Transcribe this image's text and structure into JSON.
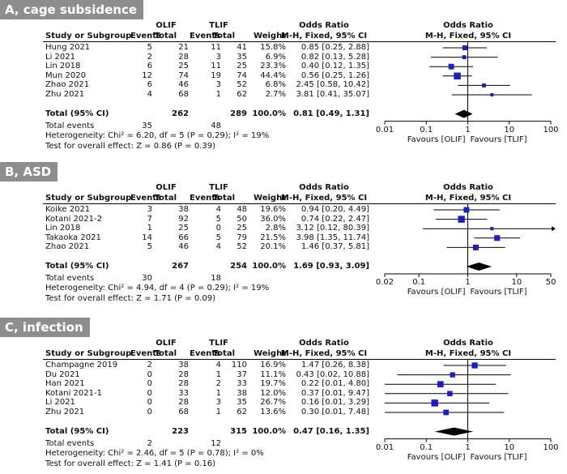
{
  "headers": {
    "olif": "OLIF",
    "tlif": "TLIF",
    "or_title": "Odds Ratio",
    "study": "Study or Subgroup",
    "events": "Events",
    "total": "Total",
    "weight": "Weight",
    "method": "M-H, Fixed, 95% CI"
  },
  "labels": {
    "total_ci": "Total (95% CI)",
    "total_events": "Total events",
    "favours_left": "Favours [OLIF]",
    "favours_right": "Favours [TLIF]"
  },
  "chart_data": [
    {
      "type": "forest",
      "title": "A, cage subsidence",
      "scale": "log",
      "axis_ticks": [
        0.01,
        0.1,
        1,
        10,
        100
      ],
      "axis_tick_labels": [
        "0.01",
        "0.1",
        "1",
        "10",
        "100"
      ],
      "studies": [
        {
          "name": "Hung 2021",
          "e1": "5",
          "n1": "21",
          "e2": "11",
          "n2": "41",
          "weight": "15.8%",
          "ci_text": "0.85 [0.25, 2.88]",
          "or": 0.85,
          "lo": 0.25,
          "hi": 2.88,
          "w": 15.8
        },
        {
          "name": "Li 2021",
          "e1": "2",
          "n1": "28",
          "e2": "3",
          "n2": "35",
          "weight": "6.9%",
          "ci_text": "0.82 [0.13, 5.28]",
          "or": 0.82,
          "lo": 0.13,
          "hi": 5.28,
          "w": 6.9
        },
        {
          "name": "Lin 2018",
          "e1": "6",
          "n1": "25",
          "e2": "11",
          "n2": "25",
          "weight": "23.3%",
          "ci_text": "0.40 [0.12, 1.35]",
          "or": 0.4,
          "lo": 0.12,
          "hi": 1.35,
          "w": 23.3
        },
        {
          "name": "Mun 2020",
          "e1": "12",
          "n1": "74",
          "e2": "19",
          "n2": "74",
          "weight": "44.4%",
          "ci_text": "0.56 [0.25, 1.26]",
          "or": 0.56,
          "lo": 0.25,
          "hi": 1.26,
          "w": 44.4
        },
        {
          "name": "Zhao 2021",
          "e1": "6",
          "n1": "46",
          "e2": "3",
          "n2": "52",
          "weight": "6.8%",
          "ci_text": "2.45 [0.58, 10.42]",
          "or": 2.45,
          "lo": 0.58,
          "hi": 10.42,
          "w": 6.8
        },
        {
          "name": "Zhu 2021",
          "e1": "4",
          "n1": "68",
          "e2": "1",
          "n2": "62",
          "weight": "2.7%",
          "ci_text": "3.81 [0.41, 35.07]",
          "or": 3.81,
          "lo": 0.41,
          "hi": 35.07,
          "w": 2.7
        }
      ],
      "total": {
        "n1": "262",
        "n2": "289",
        "weight": "100.0%",
        "ci_text": "0.81 [0.49, 1.31]",
        "or": 0.81,
        "lo": 0.49,
        "hi": 1.31
      },
      "total_events": {
        "e1": "35",
        "e2": "48"
      },
      "heterogeneity": "Heterogeneity: Chi² = 6.20, df = 5 (P = 0.29); I² = 19%",
      "overall_effect": "Test for overall effect: Z = 0.86 (P = 0.39)"
    },
    {
      "type": "forest",
      "title": "B, ASD",
      "scale": "log",
      "axis_ticks": [
        0.02,
        0.1,
        1,
        10,
        50
      ],
      "axis_tick_labels": [
        "0.02",
        "0.1",
        "1",
        "10",
        "50"
      ],
      "studies": [
        {
          "name": "Koike 2021",
          "e1": "3",
          "n1": "38",
          "e2": "4",
          "n2": "48",
          "weight": "19.6%",
          "ci_text": "0.94 [0.20, 4.49]",
          "or": 0.94,
          "lo": 0.2,
          "hi": 4.49,
          "w": 19.6
        },
        {
          "name": "Kotani 2021-2",
          "e1": "7",
          "n1": "92",
          "e2": "5",
          "n2": "50",
          "weight": "36.0%",
          "ci_text": "0.74 [0.22, 2.47]",
          "or": 0.74,
          "lo": 0.22,
          "hi": 2.47,
          "w": 36.0
        },
        {
          "name": "Lin 2018",
          "e1": "1",
          "n1": "25",
          "e2": "0",
          "n2": "25",
          "weight": "2.8%",
          "ci_text": "3.12 [0.12, 80.39]",
          "or": 3.12,
          "lo": 0.12,
          "hi": 80.39,
          "w": 2.8
        },
        {
          "name": "Takaoka 2021",
          "e1": "14",
          "n1": "66",
          "e2": "5",
          "n2": "79",
          "weight": "21.5%",
          "ci_text": "3.98 [1.35, 11.74]",
          "or": 3.98,
          "lo": 1.35,
          "hi": 11.74,
          "w": 21.5
        },
        {
          "name": "Zhao 2021",
          "e1": "5",
          "n1": "46",
          "e2": "4",
          "n2": "52",
          "weight": "20.1%",
          "ci_text": "1.46 [0.37, 5.81]",
          "or": 1.46,
          "lo": 0.37,
          "hi": 5.81,
          "w": 20.1
        }
      ],
      "total": {
        "n1": "267",
        "n2": "254",
        "weight": "100.0%",
        "ci_text": "1.69 [0.93, 3.09]",
        "or": 1.69,
        "lo": 0.93,
        "hi": 3.09
      },
      "total_events": {
        "e1": "30",
        "e2": "18"
      },
      "heterogeneity": "Heterogeneity: Chi² = 4.94, df = 4 (P = 0.29); I² = 19%",
      "overall_effect": "Test for overall effect: Z = 1.71 (P = 0.09)"
    },
    {
      "type": "forest",
      "title": "C, infection",
      "scale": "log",
      "axis_ticks": [
        0.01,
        0.1,
        1,
        10,
        100
      ],
      "axis_tick_labels": [
        "0.01",
        "0.1",
        "1",
        "10",
        "100"
      ],
      "studies": [
        {
          "name": "Champagne 2019",
          "e1": "2",
          "n1": "38",
          "e2": "4",
          "n2": "110",
          "weight": "16.9%",
          "ci_text": "1.47 [0.26, 8.38]",
          "or": 1.47,
          "lo": 0.26,
          "hi": 8.38,
          "w": 16.9
        },
        {
          "name": "Du 2021",
          "e1": "0",
          "n1": "28",
          "e2": "1",
          "n2": "37",
          "weight": "11.1%",
          "ci_text": "0.43 [0.02, 10.88]",
          "or": 0.43,
          "lo": 0.02,
          "hi": 10.88,
          "w": 11.1
        },
        {
          "name": "Han 2021",
          "e1": "0",
          "n1": "28",
          "e2": "2",
          "n2": "33",
          "weight": "19.7%",
          "ci_text": "0.22 [0.01, 4.80]",
          "or": 0.22,
          "lo": 0.01,
          "hi": 4.8,
          "w": 19.7
        },
        {
          "name": "Kotani 2021-1",
          "e1": "0",
          "n1": "33",
          "e2": "1",
          "n2": "38",
          "weight": "12.0%",
          "ci_text": "0.37 [0.01, 9.47]",
          "or": 0.37,
          "lo": 0.01,
          "hi": 9.47,
          "w": 12.0
        },
        {
          "name": "Li 2021",
          "e1": "0",
          "n1": "28",
          "e2": "3",
          "n2": "35",
          "weight": "26.7%",
          "ci_text": "0.16 [0.01, 3.29]",
          "or": 0.16,
          "lo": 0.01,
          "hi": 3.29,
          "w": 26.7
        },
        {
          "name": "Zhu 2021",
          "e1": "0",
          "n1": "68",
          "e2": "1",
          "n2": "62",
          "weight": "13.6%",
          "ci_text": "0.30 [0.01, 7.48]",
          "or": 0.3,
          "lo": 0.01,
          "hi": 7.48,
          "w": 13.6
        }
      ],
      "total": {
        "n1": "223",
        "n2": "315",
        "weight": "100.0%",
        "ci_text": "0.47 [0.16, 1.35]",
        "or": 0.47,
        "lo": 0.16,
        "hi": 1.35
      },
      "total_events": {
        "e1": "2",
        "e2": "12"
      },
      "heterogeneity": "Heterogeneity: Chi² = 2.46, df = 5 (P = 0.78); I² = 0%",
      "overall_effect": "Test for overall effect: Z = 1.41 (P = 0.16)"
    }
  ]
}
